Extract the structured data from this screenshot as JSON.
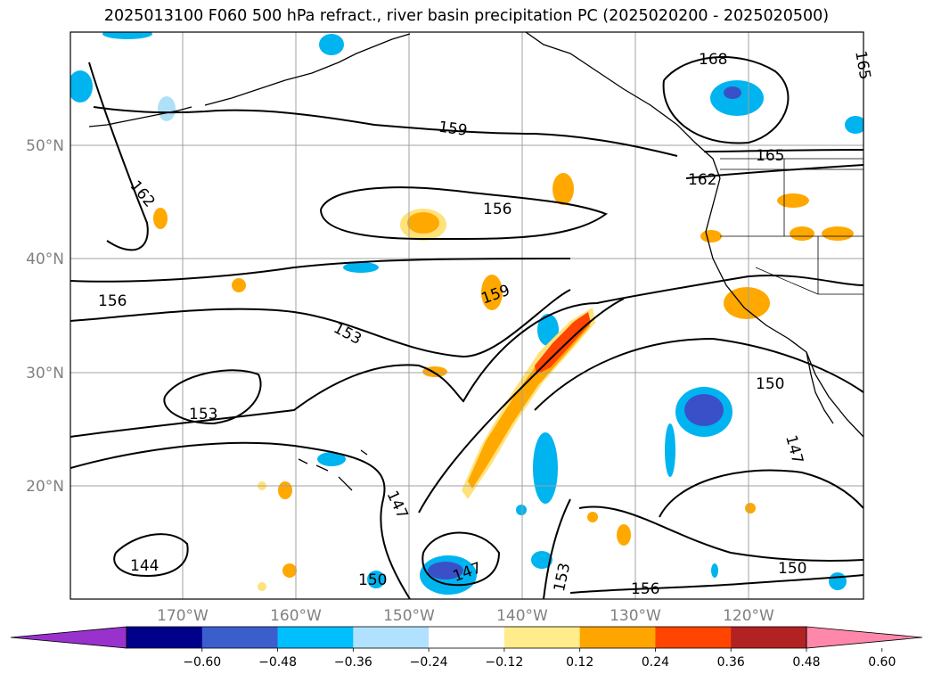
{
  "title": "2025013100 F060 500 hPa refract., river basin precipitation PC (2025020200 - 2025020500)",
  "map": {
    "lat_labels": [
      "50°N",
      "40°N",
      "30°N",
      "20°N"
    ],
    "lon_labels": [
      "170°W",
      "160°W",
      "150°W",
      "140°W",
      "130°W",
      "120°W"
    ],
    "contour_labels": [
      "168",
      "165",
      "159",
      "165",
      "162",
      "162",
      "156",
      "159",
      "156",
      "153",
      "153",
      "150",
      "147",
      "147",
      "147",
      "153",
      "144",
      "150",
      "156",
      "150"
    ],
    "colors": {
      "coast": "#000000",
      "contour": "#000000",
      "grid": "#a0a0a0",
      "neg_dark": "#3a50c8",
      "neg_mid": "#00b4f0",
      "neg_light": "#aee0f8",
      "pos_light": "#ffe27a",
      "pos_mid": "#ffa800",
      "pos_dark": "#ff4500"
    }
  },
  "colorbar": {
    "ticks": [
      "−0.60",
      "−0.48",
      "−0.36",
      "−0.24",
      "−0.12",
      "0.12",
      "0.24",
      "0.36",
      "0.48",
      "0.60"
    ],
    "colors": [
      "#9932cc",
      "#00008b",
      "#3a5fcd",
      "#00bfff",
      "#b0e2ff",
      "#ffffff",
      "#ffec8b",
      "#ffa500",
      "#ff4500",
      "#b22222",
      "#ff88aa"
    ]
  }
}
